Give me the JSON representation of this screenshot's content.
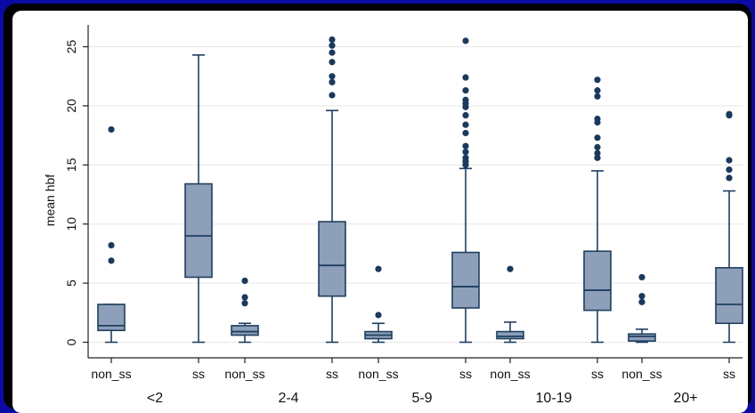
{
  "chart_data": {
    "type": "box",
    "ylabel": "mean hbf",
    "xlabel": "",
    "ylim": [
      -1,
      26.5
    ],
    "yticks": [
      0,
      5,
      10,
      15,
      20,
      25
    ],
    "grid": true,
    "groups": [
      {
        "label": "<2",
        "boxes": [
          {
            "label": "non_ss",
            "min": 0,
            "q1": 1.0,
            "median": 1.4,
            "q3": 3.2,
            "max": 3.2,
            "outliers": [
              6.9,
              8.2,
              18.0
            ]
          },
          {
            "label": "ss",
            "min": 0,
            "q1": 5.5,
            "median": 9.0,
            "q3": 13.4,
            "max": 24.3,
            "outliers": []
          }
        ]
      },
      {
        "label": "2-4",
        "boxes": [
          {
            "label": "non_ss",
            "min": 0,
            "q1": 0.6,
            "median": 0.9,
            "q3": 1.4,
            "max": 1.6,
            "outliers": [
              3.3,
              3.8,
              5.2
            ]
          },
          {
            "label": "ss",
            "min": 0,
            "q1": 3.9,
            "median": 6.5,
            "q3": 10.2,
            "max": 19.6,
            "outliers": [
              20.9,
              22.0,
              22.5,
              23.7,
              24.5,
              25.1,
              25.6
            ]
          }
        ]
      },
      {
        "label": "5-9",
        "boxes": [
          {
            "label": "non_ss",
            "min": 0,
            "q1": 0.3,
            "median": 0.6,
            "q3": 0.9,
            "max": 1.6,
            "outliers": [
              2.3,
              6.2
            ]
          },
          {
            "label": "ss",
            "min": 0,
            "q1": 2.9,
            "median": 4.7,
            "q3": 7.6,
            "max": 14.7,
            "outliers": [
              15.0,
              15.3,
              15.6,
              16.1,
              16.6,
              17.7,
              18.4,
              19.2,
              19.9,
              20.2,
              20.5,
              21.3,
              22.4,
              25.5
            ]
          }
        ]
      },
      {
        "label": "10-19",
        "boxes": [
          {
            "label": "non_ss",
            "min": 0,
            "q1": 0.3,
            "median": 0.5,
            "q3": 0.9,
            "max": 1.7,
            "outliers": [
              6.2
            ]
          },
          {
            "label": "ss",
            "min": 0,
            "q1": 2.7,
            "median": 4.4,
            "q3": 7.7,
            "max": 14.5,
            "outliers": [
              15.6,
              16.0,
              16.5,
              17.3,
              18.6,
              18.9,
              20.8,
              21.3,
              22.2
            ]
          }
        ]
      },
      {
        "label": "20+",
        "boxes": [
          {
            "label": "non_ss",
            "min": 0,
            "q1": 0.1,
            "median": 0.5,
            "q3": 0.7,
            "max": 1.1,
            "outliers": [
              3.4,
              3.9,
              5.5
            ]
          },
          {
            "label": "ss",
            "min": 0,
            "q1": 1.6,
            "median": 3.2,
            "q3": 6.3,
            "max": 12.8,
            "outliers": [
              13.9,
              14.6,
              15.4,
              19.2,
              19.3
            ]
          }
        ]
      }
    ],
    "colors": {
      "box_fill": "#8d9fb9",
      "box_stroke": "#1f3f5f",
      "outlier": "#1a3a5c",
      "grid": "#e6e6e6",
      "background": "#0b0ba3"
    }
  }
}
